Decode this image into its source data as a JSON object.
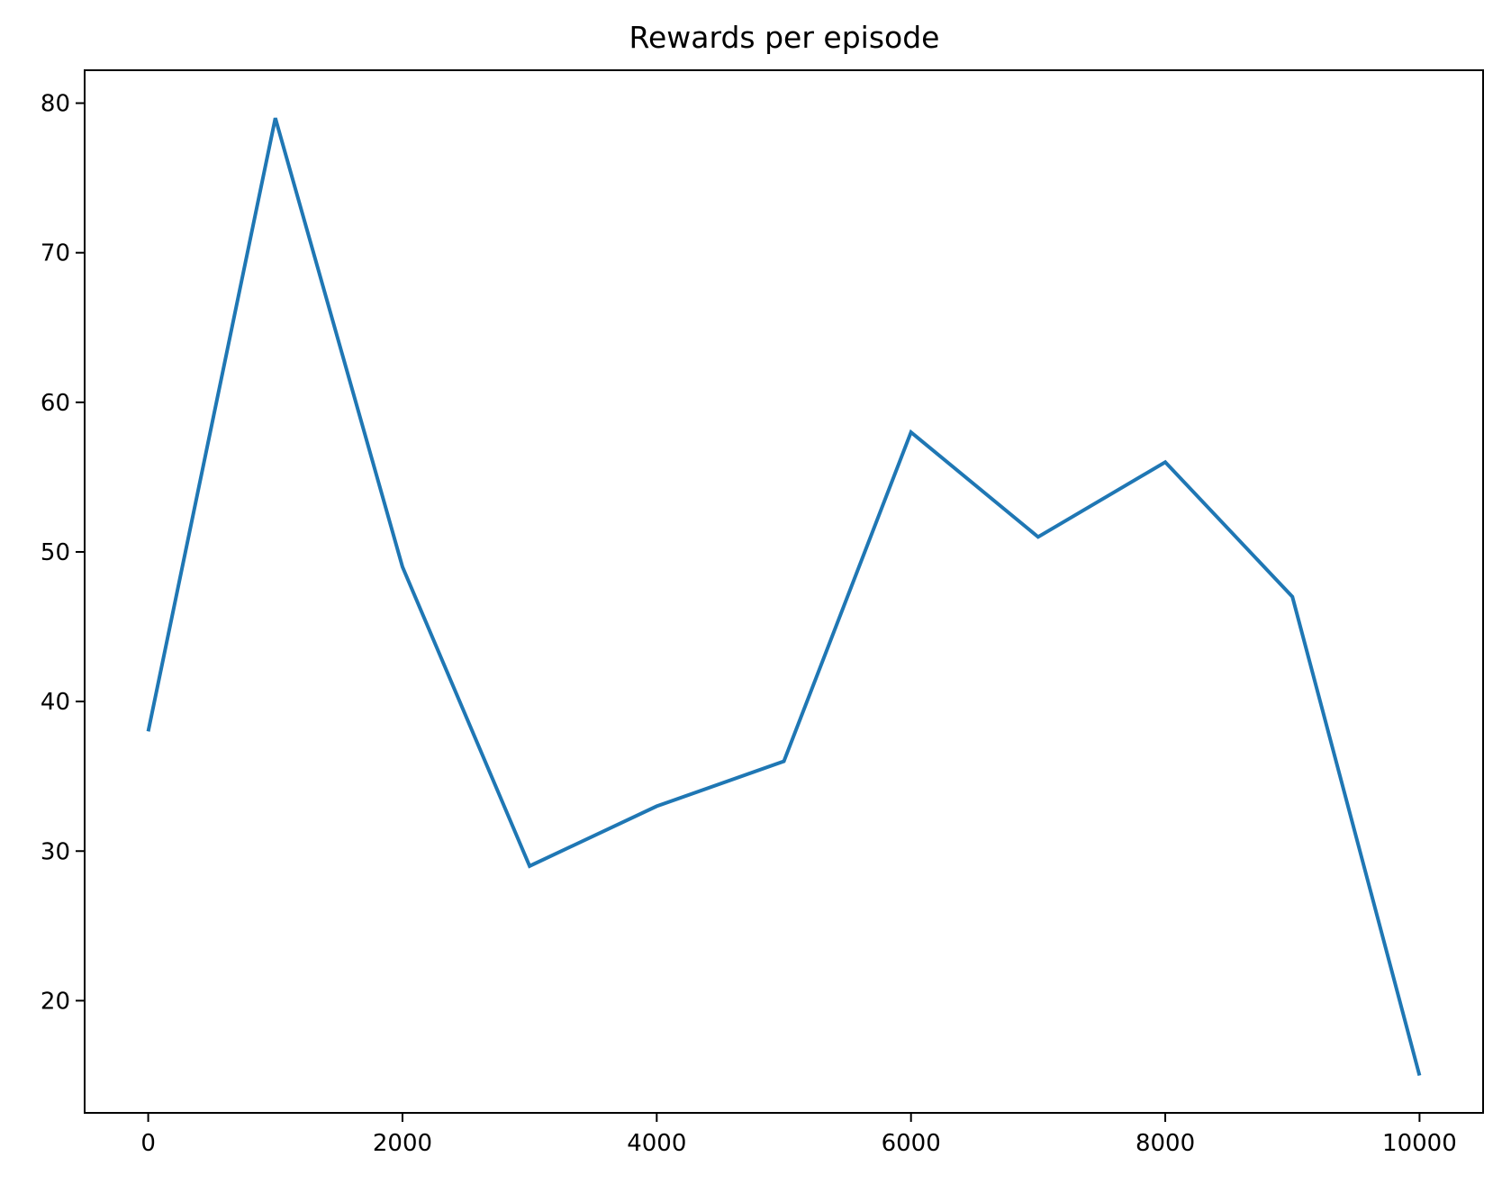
{
  "chart_data": {
    "type": "line",
    "title": "Rewards per episode",
    "xlabel": "",
    "ylabel": "",
    "xlim": [
      -500,
      10500
    ],
    "ylim": [
      12.5,
      82.2
    ],
    "xticks": [
      0,
      2000,
      4000,
      6000,
      8000,
      10000
    ],
    "xtick_labels": [
      "0",
      "2000",
      "4000",
      "6000",
      "8000",
      "10000"
    ],
    "yticks": [
      20,
      30,
      40,
      50,
      60,
      70,
      80
    ],
    "ytick_labels": [
      "20",
      "30",
      "40",
      "50",
      "60",
      "70",
      "80"
    ],
    "grid": false,
    "legend": "none",
    "series": [
      {
        "color": "#1f77b4",
        "x": [
          0,
          1000,
          2000,
          3000,
          4000,
          5000,
          6000,
          7000,
          8000,
          9000,
          10000
        ],
        "y": [
          38,
          79,
          49,
          29,
          33,
          36,
          58,
          51,
          56,
          47,
          15
        ]
      }
    ]
  }
}
